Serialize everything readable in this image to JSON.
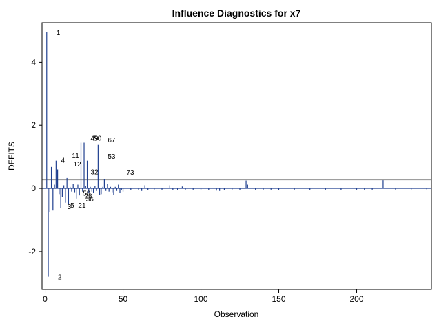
{
  "chart_data": {
    "type": "needle",
    "title": "Influence Diagnostics for x7",
    "xlabel": "Observation",
    "ylabel": "DFFITS",
    "xlim": [
      -2,
      248
    ],
    "ylim": [
      -3.2,
      5.25
    ],
    "xticks": [
      0,
      50,
      100,
      150,
      200
    ],
    "yticks": [
      -2,
      0,
      2,
      4
    ],
    "reference_lines": [
      0.27,
      -0.27
    ],
    "colors": {
      "needle": "#1f3f8f",
      "reference": "#909090",
      "frame": "#000000"
    },
    "series": [
      {
        "values": [
          {
            "x": 1,
            "y": 4.95
          },
          {
            "x": 2,
            "y": -2.8
          },
          {
            "x": 3,
            "y": -0.75
          },
          {
            "x": 4,
            "y": 0.68
          },
          {
            "x": 5,
            "y": -0.7
          },
          {
            "x": 6,
            "y": 0.12
          },
          {
            "x": 7,
            "y": 0.88
          },
          {
            "x": 8,
            "y": 0.6
          },
          {
            "x": 9,
            "y": -0.18
          },
          {
            "x": 10,
            "y": -0.62
          },
          {
            "x": 11,
            "y": -0.28
          },
          {
            "x": 12,
            "y": 0.1
          },
          {
            "x": 13,
            "y": -0.45
          },
          {
            "x": 14,
            "y": 0.33
          },
          {
            "x": 15,
            "y": -0.5
          },
          {
            "x": 16,
            "y": 0.05
          },
          {
            "x": 17,
            "y": -0.1
          },
          {
            "x": 18,
            "y": 0.15
          },
          {
            "x": 19,
            "y": -0.12
          },
          {
            "x": 20,
            "y": -0.32
          },
          {
            "x": 21,
            "y": 0.12
          },
          {
            "x": 22,
            "y": -0.22
          },
          {
            "x": 23,
            "y": 1.45
          },
          {
            "x": 24,
            "y": -0.1
          },
          {
            "x": 25,
            "y": 1.45
          },
          {
            "x": 26,
            "y": 0.08
          },
          {
            "x": 27,
            "y": 0.88
          },
          {
            "x": 28,
            "y": -0.15
          },
          {
            "x": 29,
            "y": 0.05
          },
          {
            "x": 30,
            "y": -0.1
          },
          {
            "x": 31,
            "y": -0.15
          },
          {
            "x": 32,
            "y": 0.08
          },
          {
            "x": 33,
            "y": -0.08
          },
          {
            "x": 34,
            "y": 1.38
          },
          {
            "x": 35,
            "y": -0.2
          },
          {
            "x": 36,
            "y": -0.18
          },
          {
            "x": 37,
            "y": 0.05
          },
          {
            "x": 38,
            "y": 0.3
          },
          {
            "x": 39,
            "y": -0.08
          },
          {
            "x": 40,
            "y": 0.15
          },
          {
            "x": 41,
            "y": -0.1
          },
          {
            "x": 42,
            "y": 0.05
          },
          {
            "x": 43,
            "y": -0.12
          },
          {
            "x": 44,
            "y": -0.2
          },
          {
            "x": 45,
            "y": 0.05
          },
          {
            "x": 46,
            "y": -0.08
          },
          {
            "x": 47,
            "y": 0.12
          },
          {
            "x": 48,
            "y": -0.15
          },
          {
            "x": 49,
            "y": -0.05
          },
          {
            "x": 50,
            "y": -0.1
          },
          {
            "x": 55,
            "y": -0.05
          },
          {
            "x": 60,
            "y": -0.06
          },
          {
            "x": 62,
            "y": -0.08
          },
          {
            "x": 64,
            "y": 0.1
          },
          {
            "x": 66,
            "y": -0.05
          },
          {
            "x": 70,
            "y": -0.06
          },
          {
            "x": 75,
            "y": -0.04
          },
          {
            "x": 80,
            "y": 0.1
          },
          {
            "x": 82,
            "y": -0.05
          },
          {
            "x": 85,
            "y": -0.06
          },
          {
            "x": 88,
            "y": 0.06
          },
          {
            "x": 90,
            "y": -0.05
          },
          {
            "x": 95,
            "y": -0.04
          },
          {
            "x": 100,
            "y": -0.05
          },
          {
            "x": 105,
            "y": -0.06
          },
          {
            "x": 110,
            "y": -0.07
          },
          {
            "x": 112,
            "y": -0.08
          },
          {
            "x": 115,
            "y": -0.05
          },
          {
            "x": 120,
            "y": -0.04
          },
          {
            "x": 125,
            "y": -0.06
          },
          {
            "x": 129,
            "y": 0.25
          },
          {
            "x": 130,
            "y": 0.12
          },
          {
            "x": 135,
            "y": -0.04
          },
          {
            "x": 140,
            "y": -0.05
          },
          {
            "x": 145,
            "y": -0.04
          },
          {
            "x": 150,
            "y": -0.05
          },
          {
            "x": 160,
            "y": -0.04
          },
          {
            "x": 170,
            "y": -0.05
          },
          {
            "x": 180,
            "y": -0.04
          },
          {
            "x": 190,
            "y": -0.05
          },
          {
            "x": 200,
            "y": -0.04
          },
          {
            "x": 205,
            "y": -0.05
          },
          {
            "x": 210,
            "y": -0.04
          },
          {
            "x": 217,
            "y": 0.26
          },
          {
            "x": 225,
            "y": -0.04
          },
          {
            "x": 235,
            "y": -0.04
          },
          {
            "x": 245,
            "y": -0.03
          }
        ]
      }
    ],
    "point_labels": [
      {
        "text": "1",
        "x": 1,
        "y": 4.95
      },
      {
        "text": "2",
        "x": 2,
        "y": -2.8
      },
      {
        "text": "11",
        "x": 11,
        "y": 1.05
      },
      {
        "text": "4",
        "x": 4,
        "y": 0.9
      },
      {
        "text": "12",
        "x": 12,
        "y": 0.78
      },
      {
        "text": "32",
        "x": 23,
        "y": 0.53
      },
      {
        "text": "49",
        "x": 23,
        "y": 1.6
      },
      {
        "text": "50",
        "x": 25,
        "y": 1.6
      },
      {
        "text": "67",
        "x": 34,
        "y": 1.55
      },
      {
        "text": "53",
        "x": 34,
        "y": 1.02
      },
      {
        "text": "73",
        "x": 46,
        "y": 0.52
      },
      {
        "text": "5",
        "x": 10,
        "y": -0.52
      },
      {
        "text": "3",
        "x": 8,
        "y": -0.56
      },
      {
        "text": "21",
        "x": 15,
        "y": -0.52
      },
      {
        "text": "58",
        "x": 18,
        "y": -0.14
      },
      {
        "text": "28",
        "x": 19,
        "y": -0.23
      },
      {
        "text": "36",
        "x": 20,
        "y": -0.33
      }
    ]
  }
}
